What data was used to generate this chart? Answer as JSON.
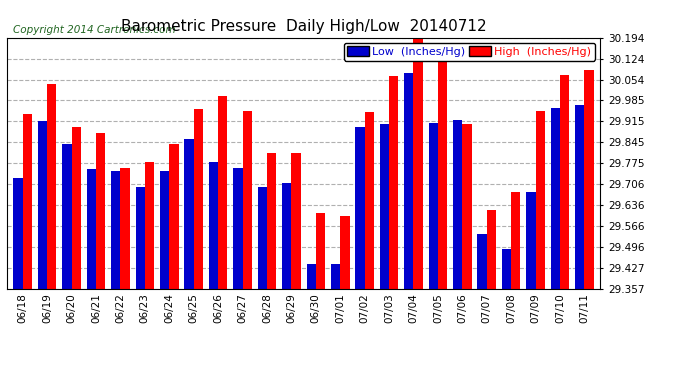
{
  "title": "Barometric Pressure  Daily High/Low  20140712",
  "copyright": "Copyright 2014 Cartronics.com",
  "legend_low": "Low  (Inches/Hg)",
  "legend_high": "High  (Inches/Hg)",
  "dates": [
    "06/18",
    "06/19",
    "06/20",
    "06/21",
    "06/22",
    "06/23",
    "06/24",
    "06/25",
    "06/26",
    "06/27",
    "06/28",
    "06/29",
    "06/30",
    "07/01",
    "07/02",
    "07/03",
    "07/04",
    "07/05",
    "07/06",
    "07/07",
    "07/08",
    "07/09",
    "07/10",
    "07/11"
  ],
  "low": [
    29.725,
    29.915,
    29.84,
    29.755,
    29.75,
    29.695,
    29.75,
    29.855,
    29.78,
    29.76,
    29.695,
    29.71,
    29.44,
    29.44,
    29.895,
    29.905,
    30.075,
    29.91,
    29.92,
    29.54,
    29.49,
    29.68,
    29.96,
    29.97
  ],
  "high": [
    29.94,
    30.04,
    29.895,
    29.875,
    29.76,
    29.78,
    29.84,
    29.955,
    30.0,
    29.95,
    29.81,
    29.81,
    29.61,
    29.6,
    29.945,
    30.065,
    30.19,
    30.14,
    29.905,
    29.62,
    29.68,
    29.95,
    30.07,
    30.085
  ],
  "ymin": 29.357,
  "ymax": 30.194,
  "yticks": [
    29.357,
    29.427,
    29.496,
    29.566,
    29.636,
    29.706,
    29.775,
    29.845,
    29.915,
    29.985,
    30.054,
    30.124,
    30.194
  ],
  "bar_width": 0.38,
  "low_color": "#0000cc",
  "high_color": "#ff0000",
  "bg_color": "#ffffff",
  "grid_color": "#b0b0b0",
  "title_fontsize": 11,
  "copyright_fontsize": 7.5,
  "tick_fontsize": 7.5,
  "legend_fontsize": 8
}
